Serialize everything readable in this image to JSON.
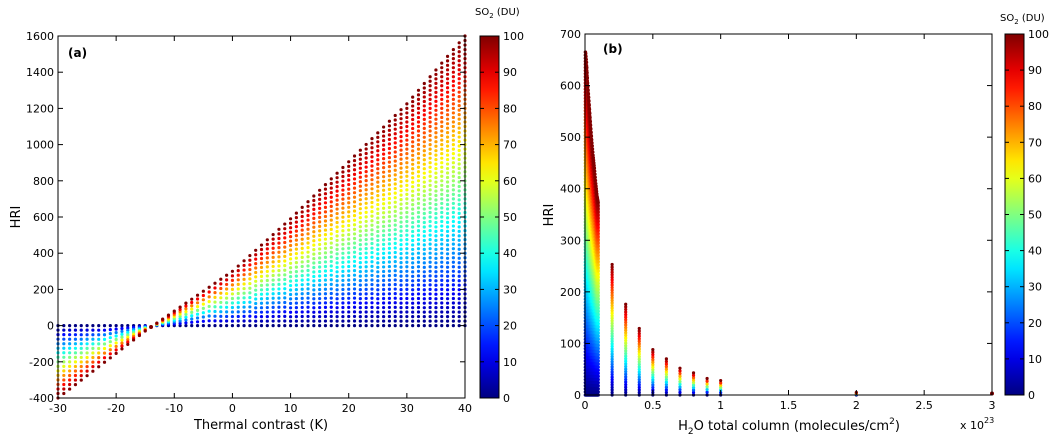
{
  "chart_data": [
    {
      "type": "scatter",
      "panel_label": "(a)",
      "xlabel": "Thermal contrast (K)",
      "ylabel": "HRI",
      "xlim": [
        -30,
        40
      ],
      "ylim": [
        -400,
        1600
      ],
      "xticks": [
        -30,
        -20,
        -10,
        0,
        10,
        20,
        30,
        40
      ],
      "yticks": [
        -400,
        -200,
        0,
        200,
        400,
        600,
        800,
        1000,
        1200,
        1400,
        1600
      ],
      "x_columns": {
        "start": -30,
        "end": 40,
        "step": 1
      },
      "color_variable": "SO2 (DU)",
      "color_range": [
        0,
        100
      ],
      "color_steps": 21,
      "hri_at_max_so2": {
        "x": [
          -30,
          -15,
          -10,
          0,
          10,
          20,
          30,
          40
        ],
        "y": [
          -400,
          -30,
          80,
          300,
          590,
          905,
          1225,
          1600
        ]
      },
      "hri_at_min_so2": 0,
      "grid": false,
      "colorbar": {
        "title_main": "SO",
        "title_sub": "2",
        "title_rest": " (DU)",
        "ticks": [
          0,
          10,
          20,
          30,
          40,
          50,
          60,
          70,
          80,
          90,
          100
        ]
      }
    },
    {
      "type": "scatter",
      "panel_label": "(b)",
      "xlabel_main": "H",
      "xlabel_sub": "2",
      "xlabel_rest": "O total column (molecules/cm",
      "xlabel_sup": "2",
      "xlabel_close": ")",
      "ylabel": "HRI",
      "xlim": [
        0,
        3
      ],
      "ylim": [
        0,
        700
      ],
      "xticks": [
        0,
        0.5,
        1,
        1.5,
        2,
        2.5,
        3
      ],
      "yticks": [
        0,
        100,
        200,
        300,
        400,
        500,
        600,
        700
      ],
      "x_multiplier_base": "x 10",
      "x_multiplier_exp": "23",
      "dense_curve": {
        "x": [
          0.005,
          0.012,
          0.02,
          0.03,
          0.04,
          0.05,
          0.06,
          0.07,
          0.08,
          0.09,
          0.1
        ],
        "y_max": [
          665,
          645,
          605,
          570,
          530,
          495,
          465,
          440,
          410,
          385,
          370
        ]
      },
      "columns": {
        "x": [
          0.2,
          0.3,
          0.4,
          0.5,
          0.6,
          0.7,
          0.8,
          0.9,
          1.0,
          2.0,
          3.0
        ],
        "y_max": [
          253,
          176,
          129,
          88,
          70,
          52,
          43,
          32,
          28,
          5,
          3
        ]
      },
      "color_variable": "SO2 (DU)",
      "color_range": [
        0,
        100
      ],
      "color_steps": 21,
      "grid": false,
      "colorbar": {
        "title_main": "SO",
        "title_sub": "2",
        "title_rest": " (DU)",
        "ticks": [
          0,
          10,
          20,
          30,
          40,
          50,
          60,
          70,
          80,
          90,
          100
        ]
      }
    }
  ]
}
